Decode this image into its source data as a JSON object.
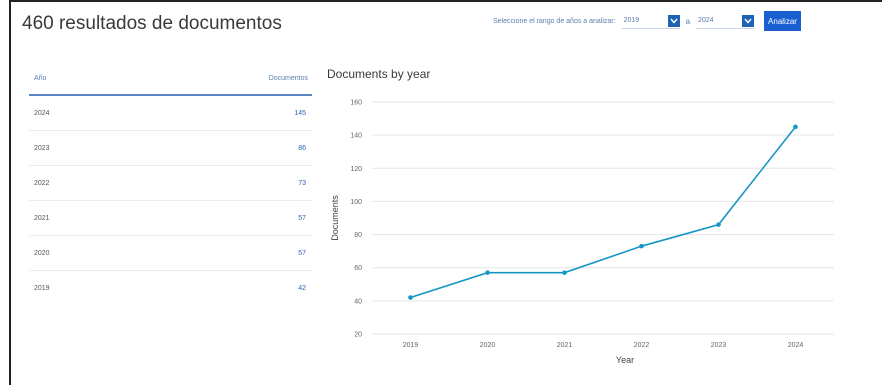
{
  "header": {
    "title": "460 resultados de documentos",
    "range_label": "Seleccione el rango de años a analizar:",
    "from_year": "2019",
    "to_separator": "a",
    "to_year": "2024",
    "analyze_button": "Analizar"
  },
  "table": {
    "col_year": "Año",
    "col_docs": "Documentos",
    "rows": [
      {
        "year": "2024",
        "docs": "145"
      },
      {
        "year": "2023",
        "docs": "86"
      },
      {
        "year": "2022",
        "docs": "73"
      },
      {
        "year": "2021",
        "docs": "57"
      },
      {
        "year": "2020",
        "docs": "57"
      },
      {
        "year": "2019",
        "docs": "42"
      }
    ]
  },
  "chart_data": {
    "type": "line",
    "title": "Documents by year",
    "xlabel": "Year",
    "ylabel": "Documents",
    "x": [
      "2019",
      "2020",
      "2021",
      "2022",
      "2023",
      "2024"
    ],
    "series": [
      {
        "values": [
          42,
          57,
          57,
          73,
          86,
          145
        ]
      }
    ],
    "ylim": [
      20,
      160
    ],
    "yticks": [
      20,
      40,
      60,
      80,
      100,
      120,
      140,
      160
    ],
    "grid": true,
    "color": "#1497c4"
  }
}
